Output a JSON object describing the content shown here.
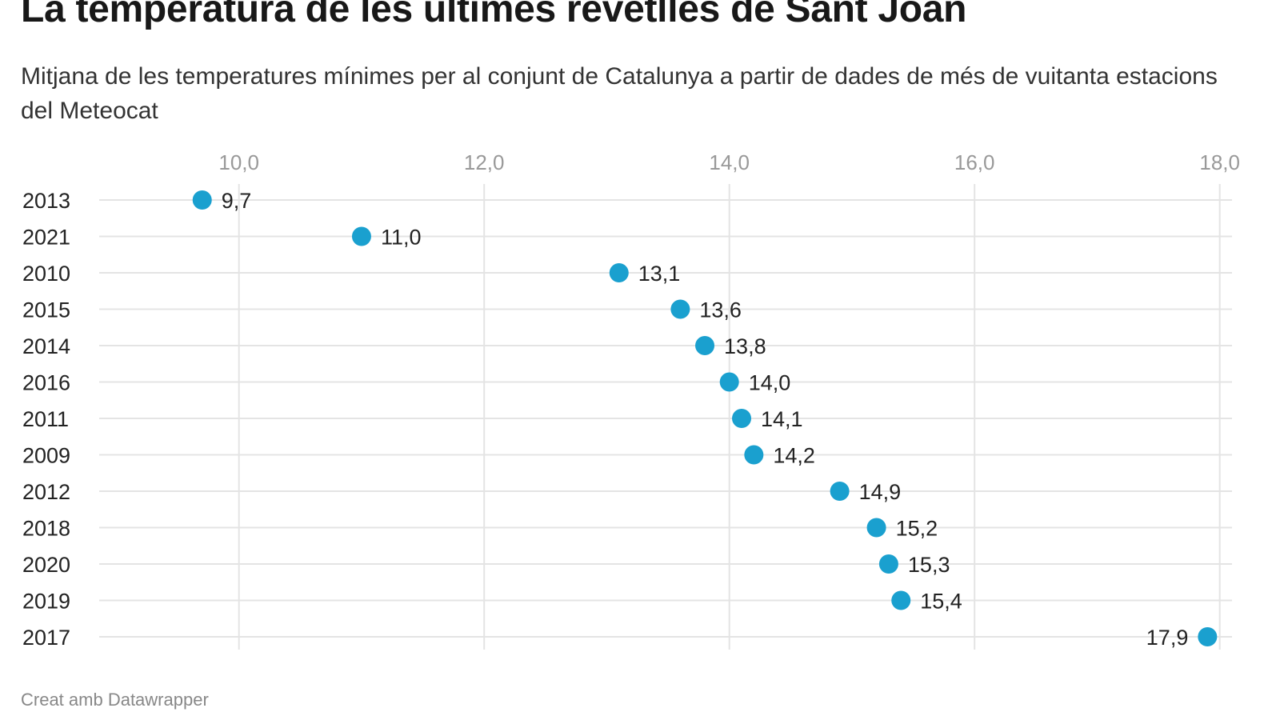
{
  "title": "La temperatura de les últimes revetlles de Sant Joan",
  "subtitle": "Mitjana de les temperatures mínimes per al conjunt de Catalunya a partir de dades de més de vuitanta estacions del Meteocat",
  "footer": "Creat amb Datawrapper",
  "chart_data": {
    "type": "dot",
    "title": "La temperatura de les últimes revetlles de Sant Joan",
    "categories": [
      "2013",
      "2021",
      "2010",
      "2015",
      "2014",
      "2016",
      "2011",
      "2009",
      "2012",
      "2018",
      "2020",
      "2019",
      "2017"
    ],
    "values": [
      9.7,
      11.0,
      13.1,
      13.6,
      13.8,
      14.0,
      14.1,
      14.2,
      14.9,
      15.2,
      15.3,
      15.4,
      17.9
    ],
    "data_labels": [
      "9,7",
      "11,0",
      "13,1",
      "13,6",
      "13,8",
      "14,0",
      "14,1",
      "14,2",
      "14,9",
      "15,2",
      "15,3",
      "15,4",
      "17,9"
    ],
    "xticks": [
      10,
      12,
      14,
      16,
      18
    ],
    "xtick_labels": [
      "10,0",
      "12,0",
      "14,0",
      "16,0",
      "18,0"
    ],
    "xlim": [
      8.86,
      18.1
    ],
    "x_axis_position": "top",
    "grid": true,
    "dot_color": "#1aa0cf"
  }
}
